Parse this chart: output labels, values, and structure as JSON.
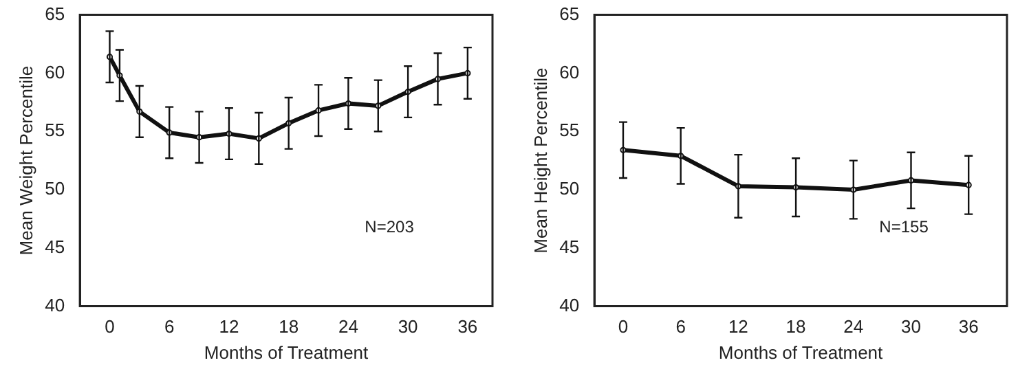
{
  "chart_data": [
    {
      "type": "line",
      "xlabel": "Months of Treatment",
      "ylabel": "Mean Weight Percentile",
      "annotations": [
        "N=203"
      ],
      "x": [
        0,
        1,
        3,
        6,
        9,
        12,
        15,
        18,
        21,
        24,
        27,
        30,
        33,
        36
      ],
      "series": [
        {
          "color": "#111111",
          "values": [
            61.4,
            59.8,
            56.7,
            54.9,
            54.5,
            54.8,
            54.4,
            55.7,
            56.8,
            57.4,
            57.2,
            58.4,
            59.5,
            60.0
          ],
          "errors": [
            2.2,
            2.2,
            2.2,
            2.2,
            2.2,
            2.2,
            2.2,
            2.2,
            2.2,
            2.2,
            2.2,
            2.2,
            2.2,
            2.2
          ]
        }
      ],
      "xlim": [
        -3,
        38.5
      ],
      "xticks": [
        0,
        6,
        12,
        18,
        24,
        30,
        36
      ],
      "ylim": [
        40,
        65
      ],
      "yticks": [
        40,
        45,
        50,
        55,
        60,
        65
      ],
      "grid": false,
      "legend": false,
      "marker": "circle",
      "line_style": "solid"
    },
    {
      "type": "line",
      "xlabel": "Months of Treatment",
      "ylabel": "Mean Height Percentile",
      "annotations": [
        "N=155"
      ],
      "x": [
        0,
        6,
        12,
        18,
        24,
        30,
        36
      ],
      "series": [
        {
          "color": "#111111",
          "values": [
            53.4,
            52.9,
            50.3,
            50.2,
            50.0,
            50.8,
            50.4
          ],
          "errors": [
            2.4,
            2.4,
            2.7,
            2.5,
            2.5,
            2.4,
            2.5
          ]
        }
      ],
      "xlim": [
        -3,
        40
      ],
      "xticks": [
        0,
        6,
        12,
        18,
        24,
        30,
        36
      ],
      "ylim": [
        40,
        65
      ],
      "yticks": [
        40,
        45,
        50,
        55,
        60,
        65
      ],
      "grid": false,
      "legend": false,
      "marker": "circle",
      "line_style": "solid"
    }
  ]
}
